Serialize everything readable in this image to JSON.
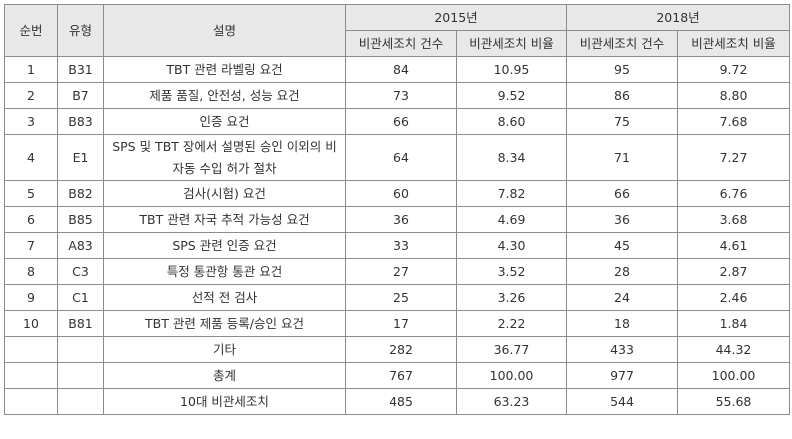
{
  "header": {
    "no": "순번",
    "type": "유형",
    "desc": "설명",
    "year1": "2015년",
    "year2": "2018년",
    "count": "비관세조치 건수",
    "ratio": "비관세조치 비율"
  },
  "rows": [
    {
      "no": "1",
      "type": "B31",
      "desc": "TBT 관련 라벨링 요건",
      "c15": "84",
      "r15": "10.95",
      "c18": "95",
      "r18": "9.72"
    },
    {
      "no": "2",
      "type": "B7",
      "desc": "제품 품질, 안전성, 성능 요건",
      "c15": "73",
      "r15": "9.52",
      "c18": "86",
      "r18": "8.80"
    },
    {
      "no": "3",
      "type": "B83",
      "desc": "인증 요건",
      "c15": "66",
      "r15": "8.60",
      "c18": "75",
      "r18": "7.68"
    },
    {
      "no": "4",
      "type": "E1",
      "desc": "SPS 및 TBT 장에서 설명된 승인 이외의 비 자동 수입 허가 절차",
      "c15": "64",
      "r15": "8.34",
      "c18": "71",
      "r18": "7.27"
    },
    {
      "no": "5",
      "type": "B82",
      "desc": "검사(시험) 요건",
      "c15": "60",
      "r15": "7.82",
      "c18": "66",
      "r18": "6.76"
    },
    {
      "no": "6",
      "type": "B85",
      "desc": "TBT 관련 자국 추적 가능성 요건",
      "c15": "36",
      "r15": "4.69",
      "c18": "36",
      "r18": "3.68"
    },
    {
      "no": "7",
      "type": "A83",
      "desc": "SPS 관련 인증 요건",
      "c15": "33",
      "r15": "4.30",
      "c18": "45",
      "r18": "4.61"
    },
    {
      "no": "8",
      "type": "C3",
      "desc": "특정 통관항 통관 요건",
      "c15": "27",
      "r15": "3.52",
      "c18": "28",
      "r18": "2.87"
    },
    {
      "no": "9",
      "type": "C1",
      "desc": "선적 전 검사",
      "c15": "25",
      "r15": "3.26",
      "c18": "24",
      "r18": "2.46"
    },
    {
      "no": "10",
      "type": "B81",
      "desc": "TBT 관련 제품 등록/승인 요건",
      "c15": "17",
      "r15": "2.22",
      "c18": "18",
      "r18": "1.84"
    }
  ],
  "summary": [
    {
      "label": "기타",
      "c15": "282",
      "r15": "36.77",
      "c18": "433",
      "r18": "44.32"
    },
    {
      "label": "총계",
      "c15": "767",
      "r15": "100.00",
      "c18": "977",
      "r18": "100.00"
    },
    {
      "label": "10대 비관세조치",
      "c15": "485",
      "r15": "63.23",
      "c18": "544",
      "r18": "55.68"
    }
  ]
}
